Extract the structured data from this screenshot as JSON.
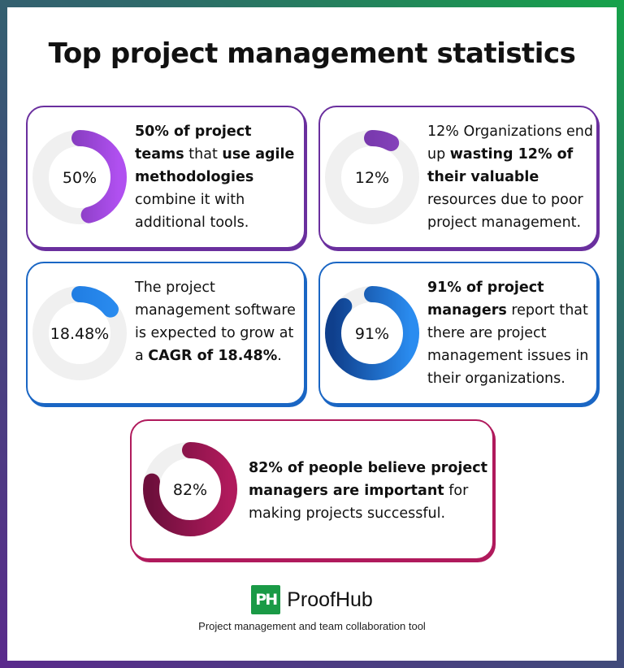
{
  "title": "Top project management statistics",
  "cards": [
    {
      "value": 50,
      "label": "50%",
      "color_start": "#6a2f9e",
      "color_end": "#b050f0",
      "border": "#6a2f9e",
      "text": [
        {
          "t": "50% of project teams",
          "b": true
        },
        {
          "t": " that ",
          "b": false
        },
        {
          "t": "use agile methodologies",
          "b": true
        },
        {
          "t": " combine it with additional tools.",
          "b": false
        }
      ]
    },
    {
      "value": 12,
      "label": "12%",
      "color_start": "#6a2f9e",
      "color_end": "#8a45c0",
      "border": "#6a2f9e",
      "text": [
        {
          "t": "12% Organizations end up ",
          "b": false
        },
        {
          "t": "wasting 12% of their valuable",
          "b": true
        },
        {
          "t": " resources due to poor project management.",
          "b": false
        }
      ]
    },
    {
      "value": 18.48,
      "label": "18.48%",
      "color_start": "#1a73d9",
      "color_end": "#2a8cf0",
      "border": "#1a66c4",
      "text": [
        {
          "t": "The project management software is expected to grow at a ",
          "b": false
        },
        {
          "t": "CAGR of 18.48%",
          "b": true
        },
        {
          "t": ".",
          "b": false
        }
      ]
    },
    {
      "value": 91,
      "label": "91%",
      "color_start": "#0f3f8c",
      "color_end": "#2a8cf0",
      "border": "#1a66c4",
      "text": [
        {
          "t": "91% of project managers",
          "b": true
        },
        {
          "t": " report that there are project management issues in their organizations.",
          "b": false
        }
      ]
    },
    {
      "value": 82,
      "label": "82%",
      "color_start": "#6e0f3c",
      "color_end": "#b01a5c",
      "border": "#b01a5c",
      "text": [
        {
          "t": "82% of people believe project managers are important",
          "b": true
        },
        {
          "t": " for making projects successful.",
          "b": false
        }
      ]
    }
  ],
  "brand": {
    "logo": "PH",
    "name": "ProofHub",
    "tagline": "Project management and team collaboration tool"
  },
  "track_color": "#f0f0f0"
}
